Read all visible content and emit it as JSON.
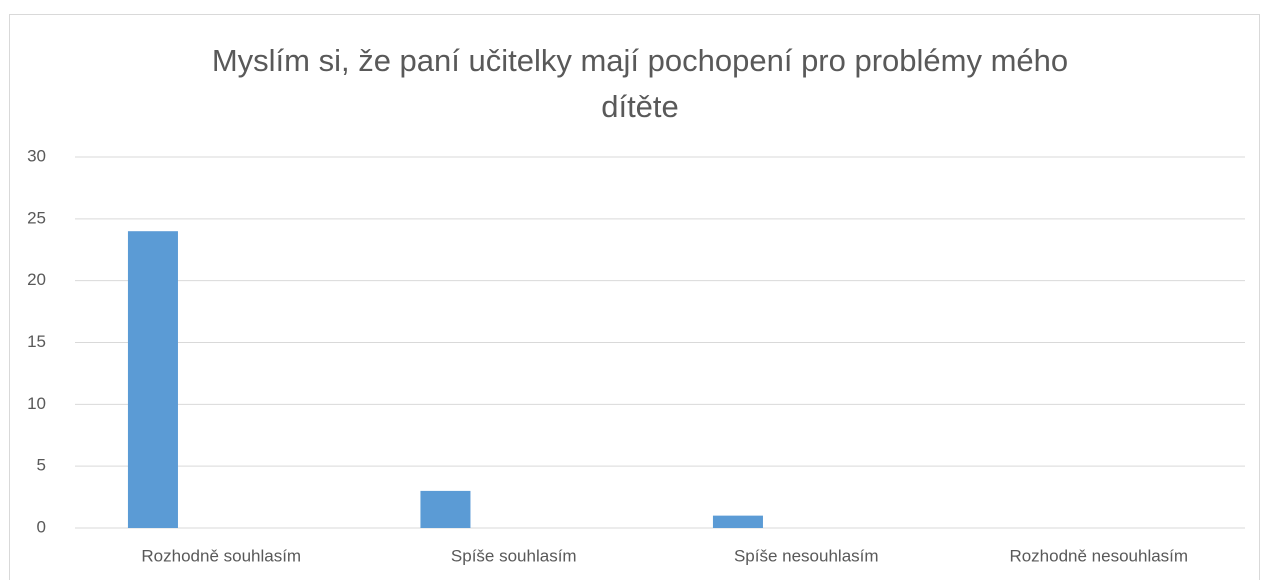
{
  "chart_data": {
    "type": "bar",
    "title": "Myslím si, že paní učitelky mají pochopení pro problémy mého dítěte",
    "categories": [
      "Rozhodně souhlasím",
      "Spíše souhlasím",
      "Spíše nesouhlasím",
      "Rozhodně nesouhlasím"
    ],
    "values": [
      24,
      3,
      1,
      0
    ],
    "color": "#5b9bd5",
    "ylim": [
      0,
      30
    ],
    "yticks": [
      0,
      5,
      10,
      15,
      20,
      25,
      30
    ],
    "grid": true
  }
}
